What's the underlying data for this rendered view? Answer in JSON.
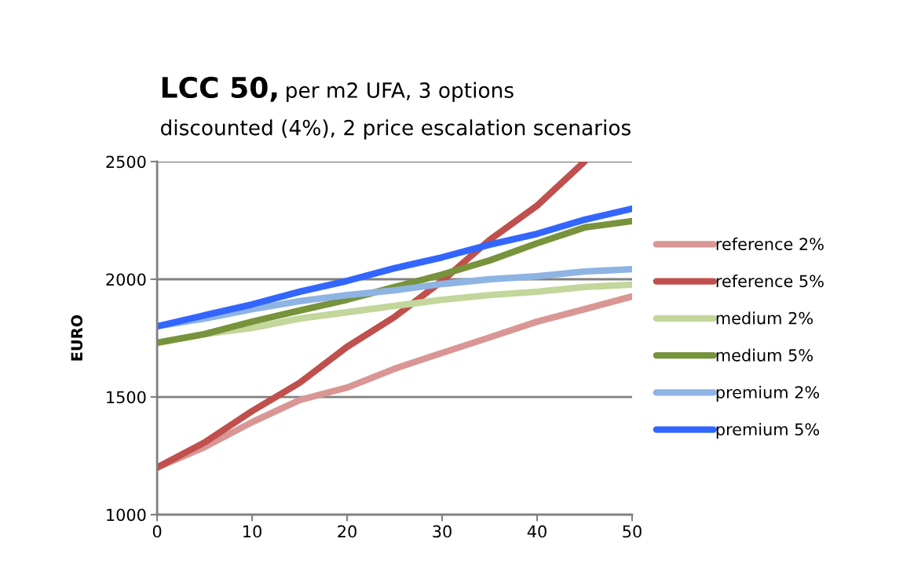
{
  "chart_data": {
    "type": "line",
    "title": "LCC 50,",
    "subtitle": "per m2 UFA, 3 options\ndiscounted (4%), 2 price escalation scenarios",
    "ylabel": "EURO",
    "x": [
      0,
      5,
      10,
      15,
      20,
      25,
      30,
      35,
      40,
      45,
      50
    ],
    "xlim": [
      0,
      50
    ],
    "xticks": [
      0,
      10,
      20,
      30,
      40,
      50
    ],
    "ylim": [
      1000,
      2500
    ],
    "yticks": [
      1000,
      1500,
      2000,
      2500
    ],
    "grid": "y",
    "legend": "right",
    "marker": "none",
    "line_style": "solid",
    "series": [
      {
        "name": "reference 2%",
        "color": "#d99694",
        "values": [
          1200,
          1287,
          1393,
          1487,
          1540,
          1620,
          1687,
          1753,
          1820,
          1873,
          1927
        ]
      },
      {
        "name": "reference 5%",
        "color": "#c0504d",
        "values": [
          1200,
          1307,
          1440,
          1560,
          1713,
          1840,
          1993,
          2167,
          2313,
          2500,
          null
        ]
      },
      {
        "name": "medium 2%",
        "color": "#c3d69b",
        "values": [
          1730,
          1767,
          1793,
          1833,
          1860,
          1887,
          1913,
          1933,
          1947,
          1967,
          1977
        ]
      },
      {
        "name": "medium 5%",
        "color": "#77933c",
        "values": [
          1730,
          1767,
          1820,
          1867,
          1913,
          1967,
          2020,
          2080,
          2153,
          2220,
          2247
        ]
      },
      {
        "name": "premium 2%",
        "color": "#8eb4e3",
        "values": [
          1800,
          1833,
          1873,
          1907,
          1933,
          1953,
          1980,
          2000,
          2013,
          2033,
          2043
        ]
      },
      {
        "name": "premium 5%",
        "color": "#3366ff",
        "values": [
          1800,
          1847,
          1893,
          1947,
          1993,
          2047,
          2093,
          2147,
          2193,
          2253,
          2300
        ]
      }
    ]
  }
}
